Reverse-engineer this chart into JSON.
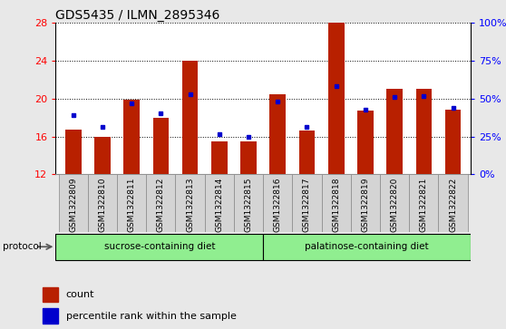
{
  "title": "GDS5435 / ILMN_2895346",
  "samples": [
    "GSM1322809",
    "GSM1322810",
    "GSM1322811",
    "GSM1322812",
    "GSM1322813",
    "GSM1322814",
    "GSM1322815",
    "GSM1322816",
    "GSM1322817",
    "GSM1322818",
    "GSM1322819",
    "GSM1322820",
    "GSM1322821",
    "GSM1322822"
  ],
  "count_values": [
    16.7,
    16.0,
    19.9,
    18.0,
    24.0,
    15.5,
    15.5,
    20.5,
    16.6,
    28.0,
    18.7,
    21.0,
    21.0,
    18.8
  ],
  "percentile_values": [
    18.3,
    17.0,
    19.5,
    18.5,
    20.5,
    16.3,
    16.0,
    19.7,
    17.0,
    21.3,
    18.8,
    20.2,
    20.3,
    19.0
  ],
  "ylim_left": [
    12,
    28
  ],
  "yticks_left": [
    12,
    16,
    20,
    24,
    28
  ],
  "ylim_right": [
    0,
    100
  ],
  "yticks_right": [
    0,
    25,
    50,
    75,
    100
  ],
  "bar_color": "#B82000",
  "marker_color": "#0000CD",
  "background_color": "#E8E8E8",
  "plot_bg_color": "#FFFFFF",
  "group1_label": "sucrose-containing diet",
  "group2_label": "palatinose-containing diet",
  "group_color": "#90EE90",
  "group1_count": 7,
  "group2_count": 7,
  "legend_count_label": "count",
  "legend_percentile_label": "percentile rank within the sample",
  "protocol_label": "protocol",
  "bar_width": 0.55
}
